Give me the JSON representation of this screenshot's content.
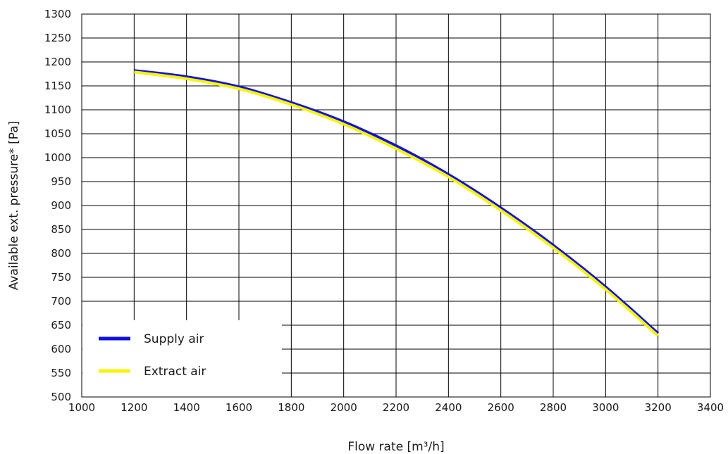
{
  "chart_data": {
    "type": "line",
    "xlabel": "Flow rate [m³/h]",
    "ylabel": "Available ext. pressure* [Pa]",
    "xlim": [
      1000,
      3400
    ],
    "ylim": [
      500,
      1300
    ],
    "x_ticks": [
      1000,
      1200,
      1400,
      1600,
      1800,
      2000,
      2200,
      2400,
      2600,
      2800,
      3000,
      3200,
      3400
    ],
    "y_ticks": [
      500,
      550,
      600,
      650,
      700,
      750,
      800,
      850,
      900,
      950,
      1000,
      1050,
      1100,
      1150,
      1200,
      1250,
      1300
    ],
    "grid": true,
    "legend_position": "bottom-left",
    "series": [
      {
        "name": "Supply air",
        "color": "#1010e0",
        "x": [
          1200,
          1400,
          1600,
          1800,
          2000,
          2200,
          2400,
          2600,
          2800,
          3000,
          3200
        ],
        "values": [
          1182,
          1169,
          1148,
          1115,
          1075,
          1025,
          965,
          895,
          817,
          730,
          633
        ]
      },
      {
        "name": "Extract air",
        "color": "#f5f500",
        "x": [
          1200,
          1400,
          1600,
          1800,
          2000,
          2200,
          2400,
          2600,
          2800,
          3000,
          3200
        ],
        "values": [
          1179,
          1165,
          1144,
          1111,
          1070,
          1019,
          960,
          890,
          812,
          725,
          628
        ]
      }
    ]
  }
}
